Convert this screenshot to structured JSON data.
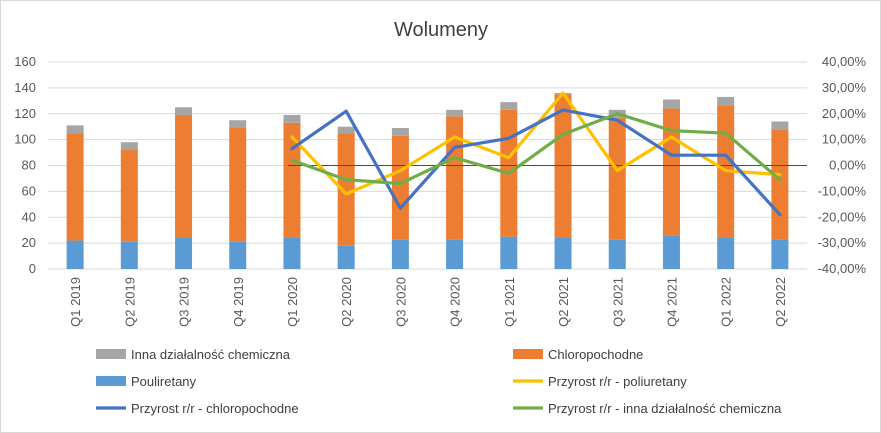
{
  "chart_data": {
    "type": "bar",
    "title": "Wolumeny",
    "categories": [
      "Q1 2019",
      "Q2 2019",
      "Q3 2019",
      "Q4 2019",
      "Q1 2020",
      "Q2 2020",
      "Q3 2020",
      "Q4 2020",
      "Q1 2021",
      "Q2 2021",
      "Q3 2021",
      "Q4 2021",
      "Q1 2022",
      "Q2 2022"
    ],
    "y_left": {
      "min": 0,
      "max": 160,
      "ticks": [
        "0",
        "20",
        "40",
        "60",
        "80",
        "100",
        "120",
        "140",
        "160"
      ]
    },
    "y_right": {
      "min": -0.4,
      "max": 0.4,
      "ticks": [
        "-40,00%",
        "-30,00%",
        "-20,00%",
        "-10,00%",
        "0,00%",
        "10,00%",
        "20,00%",
        "30,00%",
        "40,00%"
      ]
    },
    "grid": true,
    "legend_position": "bottom",
    "stacked_series": [
      {
        "name": "Pouliretany",
        "color": "#5b9bd5",
        "values": [
          22,
          21,
          24,
          21,
          24,
          18,
          23,
          23,
          25,
          24,
          23,
          26,
          24,
          23
        ]
      },
      {
        "name": "Chloropochodne",
        "color": "#ed7d31",
        "values": [
          83,
          71,
          95,
          88,
          89,
          87,
          80,
          95,
          98,
          111,
          94,
          98,
          102,
          85
        ]
      },
      {
        "name": "Inna działalność chemiczna",
        "color": "#a5a5a5",
        "values": [
          6,
          6,
          6,
          6,
          6,
          5,
          6,
          5,
          6,
          1,
          6,
          7,
          7,
          6
        ]
      }
    ],
    "line_series": [
      {
        "name": "Przyrost r/r - poliuretany",
        "color": "#ffc000",
        "start_index": 4,
        "values": [
          0.11,
          -0.11,
          -0.02,
          0.11,
          0.03,
          0.28,
          -0.02,
          0.11,
          -0.02,
          -0.035
        ]
      },
      {
        "name": "Przyrost r/r - chloropochodne",
        "color": "#4472c4",
        "start_index": 4,
        "values": [
          0.065,
          0.21,
          -0.165,
          0.07,
          0.105,
          0.215,
          0.175,
          0.04,
          0.04,
          -0.19
        ]
      },
      {
        "name": "Przyrost r/r - inna działalność chemiczna",
        "color": "#70ad47",
        "start_index": 4,
        "values": [
          0.02,
          -0.055,
          -0.07,
          0.03,
          -0.03,
          0.12,
          0.2,
          0.135,
          0.125,
          -0.055
        ]
      }
    ],
    "reference_line": {
      "value": 0,
      "axis": "right",
      "color": "#ff0000"
    },
    "legend": [
      {
        "label": "Inna działalność chemiczna",
        "color": "#a5a5a5",
        "kind": "bar"
      },
      {
        "label": "Chloropochodne",
        "color": "#ed7d31",
        "kind": "bar"
      },
      {
        "label": "Pouliretany",
        "color": "#5b9bd5",
        "kind": "bar"
      },
      {
        "label": "Przyrost r/r - poliuretany",
        "color": "#ffc000",
        "kind": "line"
      },
      {
        "label": "Przyrost r/r - chloropochodne",
        "color": "#4472c4",
        "kind": "line"
      },
      {
        "label": "Przyrost r/r - inna działalność chemiczna",
        "color": "#70ad47",
        "kind": "line"
      }
    ]
  }
}
